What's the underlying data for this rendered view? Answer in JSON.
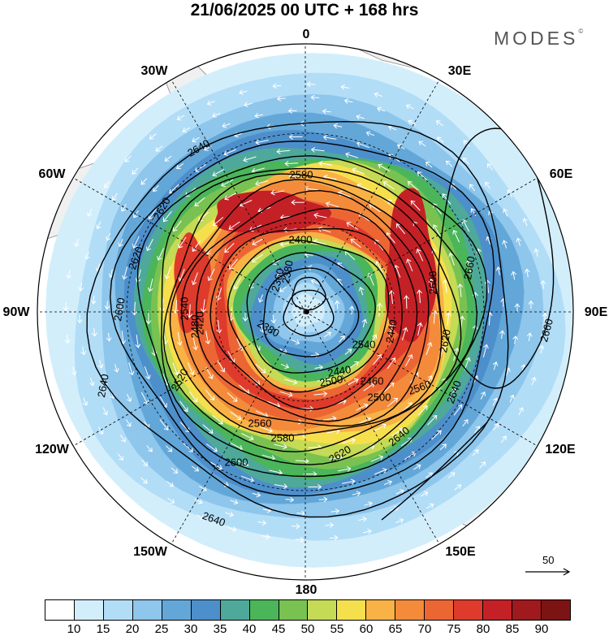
{
  "title": "21/06/2025  00 UTC  + 168 hrs",
  "brand": "MODES",
  "brand_mark": "©",
  "longitude_labels": {
    "n0": "0",
    "w30": "30W",
    "e30": "30E",
    "w60": "60W",
    "e60": "60E",
    "w90": "90W",
    "e90": "90E",
    "w120": "120W",
    "e120": "120E",
    "w150": "150W",
    "e150": "150E",
    "s180": "180"
  },
  "reference_vector": "50",
  "contour_labels": [
    "2360",
    "2380",
    "2400",
    "2420",
    "2440",
    "2460",
    "2480",
    "2500",
    "2520",
    "2540",
    "2560",
    "2580",
    "2600",
    "2620",
    "2640",
    "2660"
  ],
  "colorbar": {
    "ticks": [
      "10",
      "15",
      "20",
      "25",
      "30",
      "35",
      "40",
      "45",
      "50",
      "55",
      "60",
      "65",
      "70",
      "75",
      "80",
      "85",
      "90"
    ],
    "colors": [
      "#ffffff",
      "#d3eefb",
      "#b2ddf7",
      "#8ec6ec",
      "#63a7d9",
      "#4d8fcb",
      "#4ea99a",
      "#4bb55a",
      "#79c252",
      "#c5da55",
      "#f6df4d",
      "#f8b245",
      "#f38b3b",
      "#ec6634",
      "#de3b2c",
      "#c42127",
      "#a0191c",
      "#7d1414"
    ]
  },
  "map_colors": {
    "land": "#f0f0f0",
    "coast": "#8a8a8a",
    "contour": "#000000",
    "arrow": "#ffffff"
  }
}
